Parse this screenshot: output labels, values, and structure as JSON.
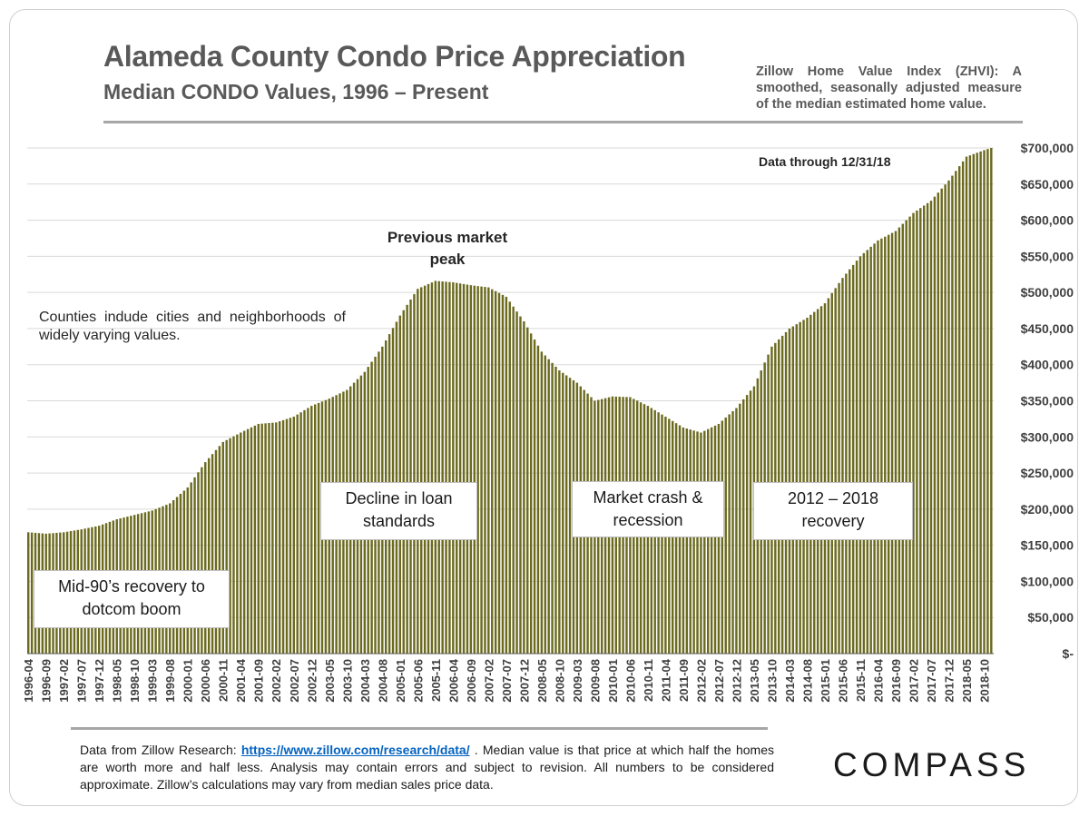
{
  "header": {
    "title": "Alameda County Condo Price Appreciation",
    "subtitle": "Median CONDO Values, 1996 – Present",
    "zhvi_note": "Zillow Home Value Index (ZHVI): A smoothed, seasonally adjusted measure of the median estimated home value."
  },
  "annotations": {
    "data_through": "Data through  12/31/18",
    "counties_note": "Counties indude cities and neighborhoods of widely varying values.",
    "previous_peak": "Previous market peak",
    "mid90s": "Mid-90’s recovery to dotcom boom",
    "decline": "Decline in loan standards",
    "crash": "Market crash & recession",
    "recovery": "2012 – 2018 recovery"
  },
  "footer": {
    "text_before": "Data from Zillow Research: ",
    "link": "https://www.zillow.com/research/data/",
    "text_after": " . Median value is that price at which half the homes are worth more and half less. Analysis may contain errors and subject to revision. All numbers to be considered approximate. Zillow’s calculations may vary from median sales price data.",
    "brand": "COMPASS"
  },
  "colors": {
    "bar": "#6b6a1f",
    "gridline": "#d9d9d9",
    "text": "#595959"
  },
  "chart_data": {
    "type": "bar",
    "title": "Alameda County Condo Price Appreciation",
    "start_month": "1996-04",
    "end_month": "2018-12",
    "x_tick_labels": [
      "1996-04",
      "1996-09",
      "1997-02",
      "1997-07",
      "1997-12",
      "1998-05",
      "1998-10",
      "1999-03",
      "1999-08",
      "2000-01",
      "2000-06",
      "2000-11",
      "2001-04",
      "2001-09",
      "2002-02",
      "2002-07",
      "2002-12",
      "2003-05",
      "2003-10",
      "2004-03",
      "2004-08",
      "2005-01",
      "2005-06",
      "2005-11",
      "2006-04",
      "2006-09",
      "2007-02",
      "2007-07",
      "2007-12",
      "2008-05",
      "2008-10",
      "2009-03",
      "2009-08",
      "2010-01",
      "2010-06",
      "2010-11",
      "2011-04",
      "2011-09",
      "2012-02",
      "2012-07",
      "2012-12",
      "2013-05",
      "2013-10",
      "2014-03",
      "2014-08",
      "2015-01",
      "2015-06",
      "2015-11",
      "2016-04",
      "2016-09",
      "2017-02",
      "2017-07",
      "2017-12",
      "2018-05",
      "2018-10"
    ],
    "y_tick_labels": [
      "$-",
      "$50,000",
      "$100,000",
      "$150,000",
      "$200,000",
      "$250,000",
      "$300,000",
      "$350,000",
      "$400,000",
      "$450,000",
      "$500,000",
      "$550,000",
      "$600,000",
      "$650,000",
      "$700,000"
    ],
    "ylim": [
      0,
      700000
    ],
    "y_axis_position": "right",
    "grid": true,
    "anchor_values": [
      [
        "1996-04",
        168000
      ],
      [
        "1996-09",
        166000
      ],
      [
        "1997-02",
        168000
      ],
      [
        "1997-07",
        172000
      ],
      [
        "1997-12",
        177000
      ],
      [
        "1998-05",
        186000
      ],
      [
        "1998-10",
        192000
      ],
      [
        "1999-03",
        198000
      ],
      [
        "1999-08",
        208000
      ],
      [
        "2000-01",
        230000
      ],
      [
        "2000-06",
        265000
      ],
      [
        "2000-11",
        293000
      ],
      [
        "2001-04",
        306000
      ],
      [
        "2001-09",
        318000
      ],
      [
        "2002-02",
        320000
      ],
      [
        "2002-07",
        328000
      ],
      [
        "2002-12",
        343000
      ],
      [
        "2003-05",
        353000
      ],
      [
        "2003-10",
        365000
      ],
      [
        "2004-03",
        390000
      ],
      [
        "2004-08",
        425000
      ],
      [
        "2005-01",
        468000
      ],
      [
        "2005-06",
        505000
      ],
      [
        "2005-11",
        516000
      ],
      [
        "2006-04",
        514000
      ],
      [
        "2006-09",
        510000
      ],
      [
        "2007-02",
        507000
      ],
      [
        "2007-07",
        494000
      ],
      [
        "2007-12",
        460000
      ],
      [
        "2008-05",
        418000
      ],
      [
        "2008-10",
        392000
      ],
      [
        "2009-03",
        375000
      ],
      [
        "2009-08",
        350000
      ],
      [
        "2010-01",
        356000
      ],
      [
        "2010-06",
        355000
      ],
      [
        "2010-11",
        343000
      ],
      [
        "2011-04",
        328000
      ],
      [
        "2011-09",
        313000
      ],
      [
        "2012-02",
        306000
      ],
      [
        "2012-07",
        318000
      ],
      [
        "2012-12",
        340000
      ],
      [
        "2013-05",
        370000
      ],
      [
        "2013-10",
        425000
      ],
      [
        "2014-03",
        450000
      ],
      [
        "2014-08",
        465000
      ],
      [
        "2015-01",
        485000
      ],
      [
        "2015-06",
        520000
      ],
      [
        "2015-11",
        550000
      ],
      [
        "2016-04",
        572000
      ],
      [
        "2016-09",
        585000
      ],
      [
        "2017-02",
        610000
      ],
      [
        "2017-07",
        627000
      ],
      [
        "2017-12",
        655000
      ],
      [
        "2018-05",
        688000
      ],
      [
        "2018-10",
        697000
      ],
      [
        "2018-12",
        700000
      ]
    ]
  }
}
